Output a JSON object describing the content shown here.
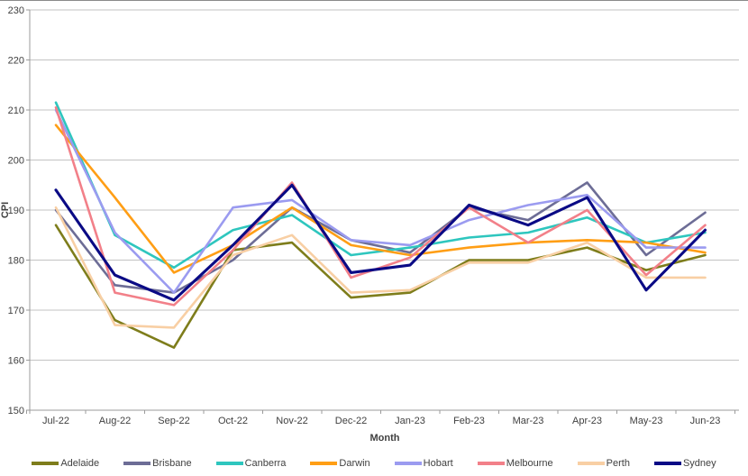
{
  "page": {
    "background": "#FFFFFF"
  },
  "chart_data": {
    "type": "line",
    "title": "",
    "xlabel": "Month",
    "ylabel": "CPI",
    "ylim": [
      150,
      230
    ],
    "y_ticks": [
      150,
      160,
      170,
      180,
      190,
      200,
      210,
      220,
      230
    ],
    "grid": true,
    "legend_position": "bottom",
    "categories": [
      "Jul-22",
      "Aug-22",
      "Sep-22",
      "Oct-22",
      "Nov-22",
      "Dec-22",
      "Jan-23",
      "Feb-23",
      "Mar-23",
      "Apr-23",
      "May-23",
      "Jun-23"
    ],
    "series": [
      {
        "name": "Adelaide",
        "color": "#7E7D1B",
        "values": [
          187,
          168,
          162.5,
          182,
          183.5,
          172.5,
          173.5,
          180,
          180,
          182.5,
          178,
          181
        ]
      },
      {
        "name": "Brisbane",
        "color": "#6D6D96",
        "values": [
          190,
          175,
          173.5,
          180,
          190.5,
          184,
          181.5,
          190.5,
          188,
          195.5,
          181,
          189.5
        ]
      },
      {
        "name": "Canberra",
        "color": "#2EC6BE",
        "values": [
          211.5,
          185,
          178.5,
          186,
          189,
          181,
          182.5,
          184.5,
          185.5,
          188.5,
          183.5,
          185.5
        ]
      },
      {
        "name": "Darwin",
        "color": "#FF9E15",
        "values": [
          207,
          192.5,
          177.5,
          183,
          190.5,
          183,
          181,
          182.5,
          183.5,
          184,
          183.5,
          181.5
        ]
      },
      {
        "name": "Hobart",
        "color": "#9B9BF0",
        "values": [
          210,
          185.5,
          173.5,
          190.5,
          192,
          184,
          183,
          188,
          191,
          193,
          182.5,
          182.5
        ]
      },
      {
        "name": "Melbourne",
        "color": "#F28089",
        "values": [
          210.5,
          173.5,
          171,
          182,
          195.5,
          176.5,
          180.5,
          190.5,
          183.5,
          190,
          177,
          187
        ]
      },
      {
        "name": "Perth",
        "color": "#F8CFA4",
        "values": [
          190.5,
          167,
          166.5,
          181,
          185,
          173.5,
          174,
          179.5,
          179.5,
          183.5,
          176.5,
          176.5
        ]
      },
      {
        "name": "Sydney",
        "color": "#0A0A85",
        "values": [
          194,
          177,
          172,
          183,
          195,
          177.5,
          179,
          191,
          187,
          192.5,
          174,
          186
        ]
      }
    ]
  },
  "style": {
    "grid_color": "#C3C3C3",
    "axis_color": "#9B9B9B",
    "text_color": "#404040",
    "top_border_color": "#8A8A8A"
  }
}
